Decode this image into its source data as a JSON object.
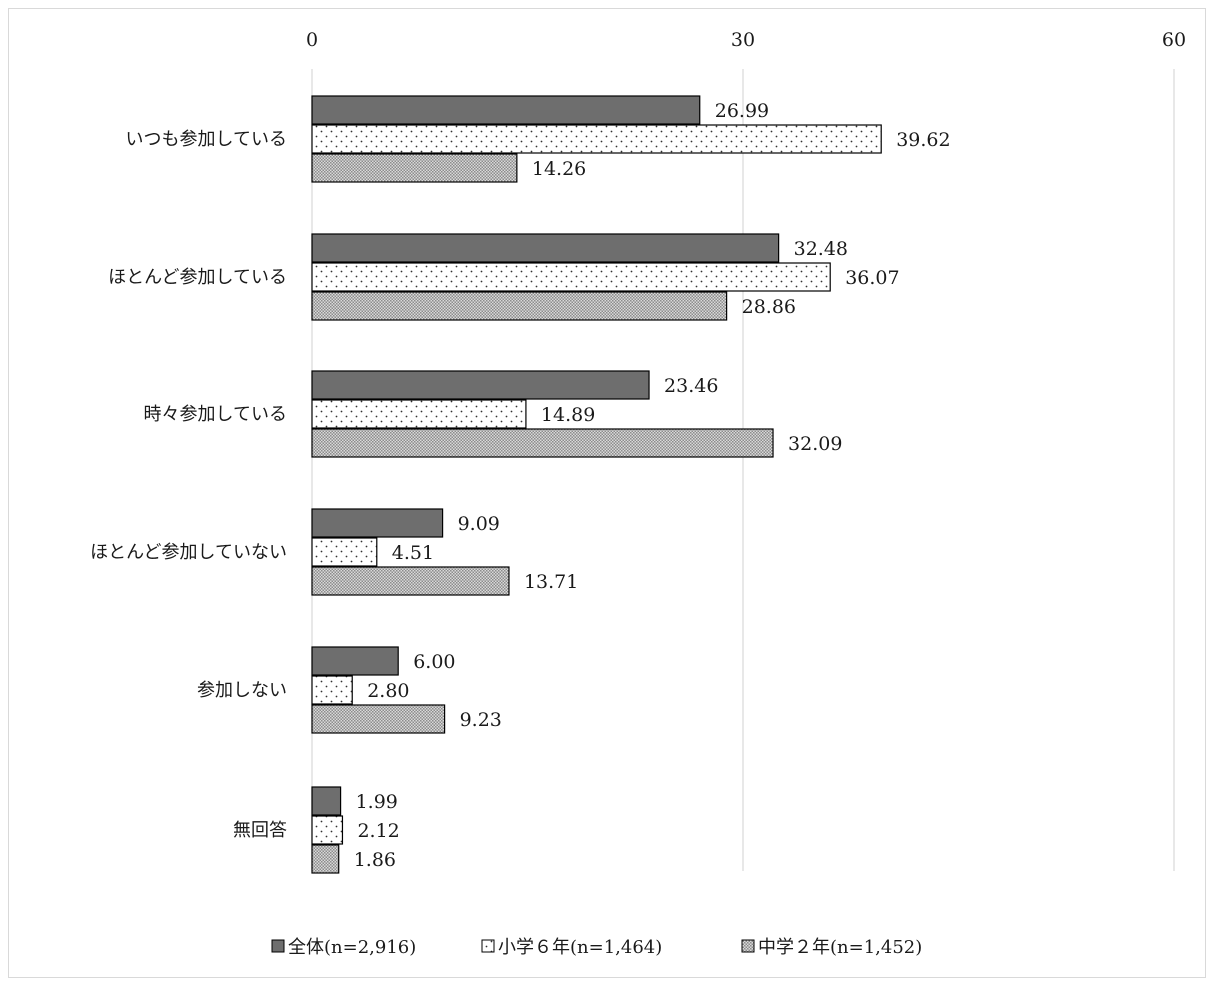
{
  "chart_data": {
    "type": "bar",
    "orientation": "horizontal",
    "xlim": [
      0,
      60
    ],
    "xticks": [
      "0",
      "30",
      "60"
    ],
    "grid": "vertical",
    "legend_position": "bottom",
    "categories": [
      "いつも参加している",
      "ほとんど参加している",
      "時々参加している",
      "ほとんど参加していない",
      "参加しない",
      "無回答"
    ],
    "series": [
      {
        "name": "全体(n=2,916)",
        "values": [
          26.99,
          32.48,
          23.46,
          9.09,
          6.0,
          1.99
        ],
        "labels": [
          "26.99",
          "32.48",
          "23.46",
          "9.09",
          "6.00",
          "1.99"
        ],
        "fill": "#6e6e6e",
        "pattern": "solid"
      },
      {
        "name": "小学６年(n=1,464)",
        "values": [
          39.62,
          36.07,
          14.89,
          4.51,
          2.8,
          2.12
        ],
        "labels": [
          "39.62",
          "36.07",
          "14.89",
          "4.51",
          "2.80",
          "2.12"
        ],
        "fill": "#ffffff",
        "pattern": "dots"
      },
      {
        "name": "中学２年(n=1,452)",
        "values": [
          14.26,
          28.86,
          32.09,
          13.71,
          9.23,
          1.86
        ],
        "labels": [
          "14.26",
          "28.86",
          "32.09",
          "13.71",
          "9.23",
          "1.86"
        ],
        "fill": "#c8c8c8",
        "pattern": "checker"
      }
    ]
  }
}
